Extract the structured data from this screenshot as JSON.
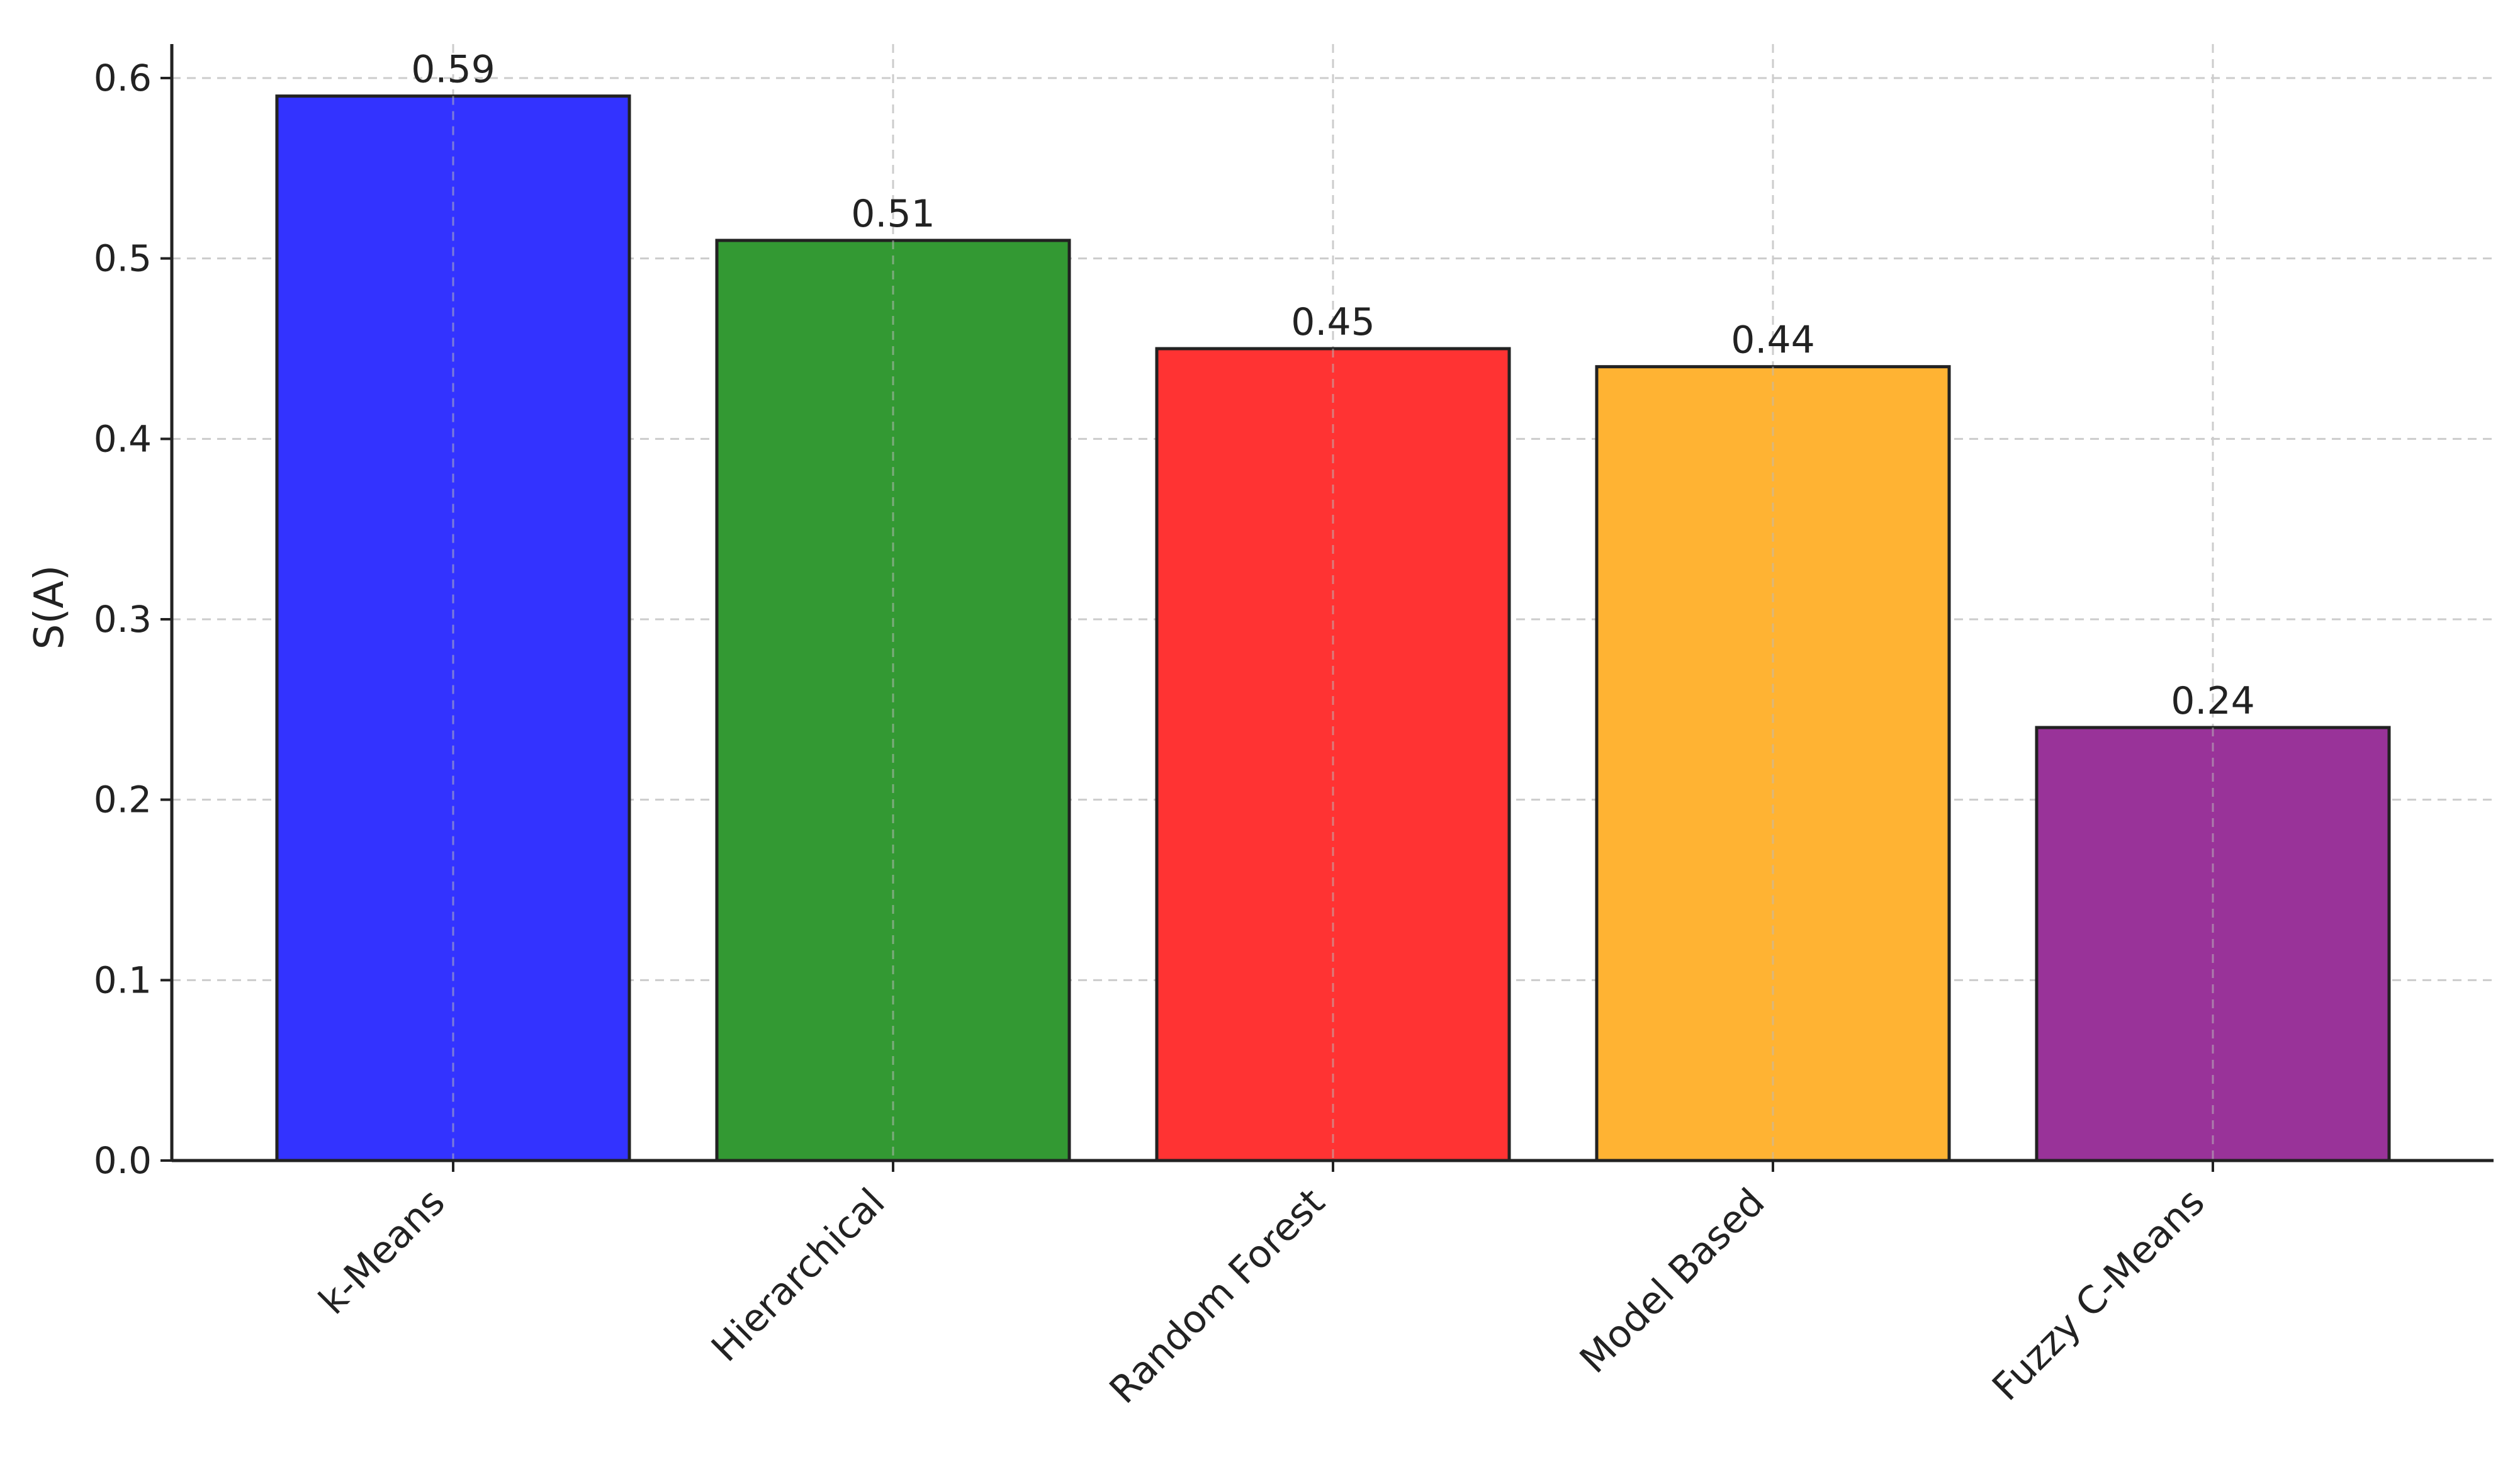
{
  "chart_data": {
    "type": "bar",
    "title": "",
    "xlabel": "",
    "ylabel": "S(A)",
    "categories": [
      "k-Means",
      "Hierarchical",
      "Random Forest",
      "Model Based",
      "Fuzzy C-Means"
    ],
    "values": [
      0.59,
      0.51,
      0.45,
      0.44,
      0.24
    ],
    "data_labels": [
      "0.59",
      "0.51",
      "0.45",
      "0.44",
      "0.24"
    ],
    "colors": [
      "#3333ff",
      "#339933",
      "#ff3333",
      "#ffb333",
      "#993399"
    ],
    "ylim": [
      0,
      0.6
    ],
    "yticks": [
      0.0,
      0.1,
      0.2,
      0.3,
      0.4,
      0.5,
      0.6
    ],
    "ytick_labels": [
      "0.0",
      "0.1",
      "0.2",
      "0.3",
      "0.4",
      "0.5",
      "0.6"
    ],
    "grid": true,
    "legend": "none"
  }
}
